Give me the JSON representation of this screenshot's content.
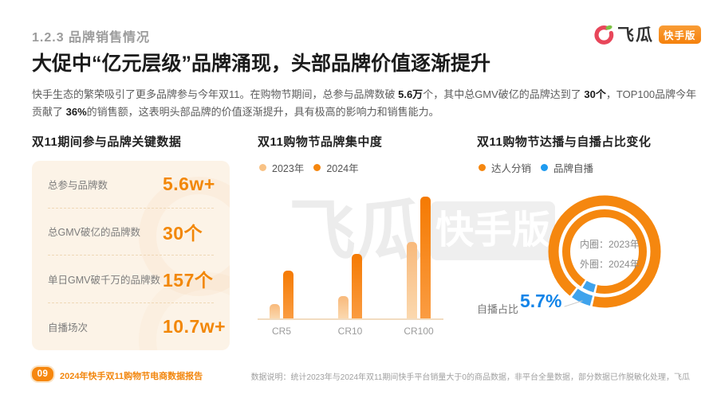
{
  "header": {
    "section_label": "1.2.3 品牌销售情况",
    "title": "大促中“亿元层级”品牌涌现，头部品牌价值逐渐提升",
    "intro": {
      "part1": "快手生态的繁荣吸引了更多品牌参与今年双11。在购物节期间，总参与品牌数破 ",
      "bold1": "5.6万",
      "part2": "个，其中总GMV破亿的品牌达到了 ",
      "bold2": "30个",
      "part3": "，TOP100品牌今年贡献了 ",
      "bold3": "36%",
      "part4": "的销售额，这表明头部品牌的价值逐渐提升，具有极高的影响力和销售能力。"
    }
  },
  "logo": {
    "brand": "飞瓜",
    "badge": "快手版"
  },
  "watermark": {
    "brand": "飞瓜",
    "badge": "快手版"
  },
  "key_data": {
    "heading": "双11期间参与品牌关键数据",
    "rows": [
      {
        "label": "总参与品牌数",
        "value": "5.6w+"
      },
      {
        "label": "总GMV破亿的品牌数",
        "value": "30个"
      },
      {
        "label": "单日GMV破千万的品牌数",
        "value": "157个"
      },
      {
        "label": "自播场次",
        "value": "10.7w+"
      }
    ]
  },
  "chart_data": [
    {
      "type": "bar",
      "title": "双11购物节品牌集中度",
      "categories": [
        "CR5",
        "CR10",
        "CR100"
      ],
      "series": [
        {
          "name": "2023年",
          "values": [
            12,
            18,
            63
          ]
        },
        {
          "name": "2024年",
          "values": [
            39,
            53,
            100
          ]
        }
      ],
      "xlabel": "",
      "ylabel": "",
      "note": "柱高为相对值估计，图中未标注数值轴",
      "legend_position": "top-left",
      "grid": false
    },
    {
      "type": "pie",
      "title": "双11购物节达播与自播占比变化",
      "legend": [
        "达人分销",
        "品牌自播"
      ],
      "rings": [
        {
          "name": "内圈：2023年",
          "slices": [
            {
              "label": "达人分销",
              "value": 95.5
            },
            {
              "label": "品牌自播",
              "value": 4.5
            }
          ]
        },
        {
          "name": "外圈：2024年",
          "slices": [
            {
              "label": "达人分销",
              "value": 94.3
            },
            {
              "label": "品牌自播",
              "value": 5.7
            }
          ]
        }
      ],
      "annotation": {
        "label": "自播占比",
        "value": "5.7%"
      }
    }
  ],
  "colors": {
    "accent_orange": "#F5870F",
    "bar_2023": "#F8BE85",
    "bar_2024": "#F5820B",
    "blue": "#1E9BF0",
    "ring_blue": "#3FA3EC",
    "card_bg": "#FCF3E7",
    "value_orange": "#F28707"
  },
  "footer": {
    "page_number": "09",
    "report_title": "2024年快手双11购物节电商数据报告",
    "note": "数据说明：统计2023年与2024年双11期间快手平台销量大于0的商品数据，非平台全量数据，部分数据已作脱敏化处理，飞瓜"
  }
}
